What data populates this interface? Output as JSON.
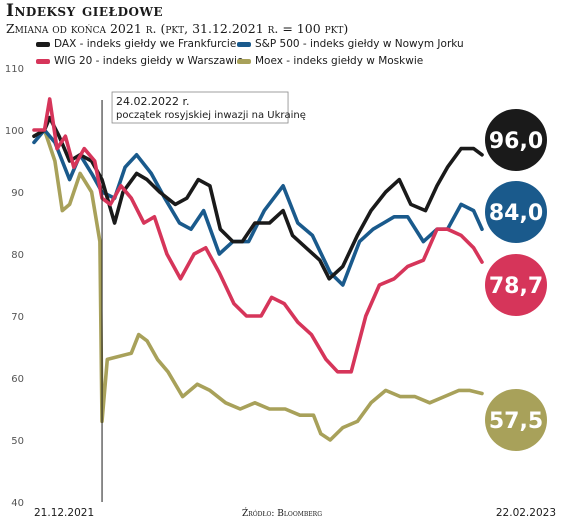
{
  "title": "Indeksy giełdowe",
  "subtitle": "Zmiana od końca 2021 r. (pkt, 31.12.2021 r. = 100 pkt)",
  "source": "Źródło: Bloomberg",
  "chart_data": {
    "type": "line",
    "title": "Indeksy giełdowe",
    "subtitle": "Zmiana od końca 2021 r. (pkt, 31.12.2021 r. = 100 pkt)",
    "xlabel": "",
    "ylabel": "",
    "ylim": [
      40,
      110
    ],
    "yticks": [
      40,
      50,
      60,
      70,
      80,
      90,
      100,
      110
    ],
    "x_start_label": "21.12.2021",
    "x_end_label": "22.02.2023",
    "x_start": "2021-12-21",
    "x_end": "2023-02-22",
    "grid": false,
    "legend_position": "top",
    "annotation": {
      "date": "2022-02-24",
      "line1": "24.02.2022 r.",
      "line2": "początek rosyjskiej inwazji na Ukrainę"
    },
    "series": [
      {
        "name": "DAX - indeks giełdy we Frankfurcie",
        "color": "#1a1a1a",
        "end_label": "96,0",
        "end_value": 96.0,
        "points": [
          [
            "2021-12-21",
            99
          ],
          [
            "2021-12-31",
            100
          ],
          [
            "2022-01-05",
            102
          ],
          [
            "2022-01-14",
            99
          ],
          [
            "2022-01-24",
            95
          ],
          [
            "2022-02-03",
            96
          ],
          [
            "2022-02-14",
            95
          ],
          [
            "2022-02-24",
            92
          ],
          [
            "2022-03-08",
            85
          ],
          [
            "2022-03-16",
            90
          ],
          [
            "2022-03-29",
            93
          ],
          [
            "2022-04-08",
            92
          ],
          [
            "2022-04-20",
            90
          ],
          [
            "2022-05-05",
            88
          ],
          [
            "2022-05-16",
            89
          ],
          [
            "2022-05-27",
            92
          ],
          [
            "2022-06-07",
            91
          ],
          [
            "2022-06-17",
            84
          ],
          [
            "2022-06-29",
            82
          ],
          [
            "2022-07-08",
            82
          ],
          [
            "2022-07-20",
            85
          ],
          [
            "2022-08-03",
            85
          ],
          [
            "2022-08-16",
            87
          ],
          [
            "2022-08-25",
            83
          ],
          [
            "2022-09-07",
            81
          ],
          [
            "2022-09-20",
            79
          ],
          [
            "2022-09-29",
            76
          ],
          [
            "2022-10-12",
            78
          ],
          [
            "2022-10-26",
            83
          ],
          [
            "2022-11-08",
            87
          ],
          [
            "2022-11-22",
            90
          ],
          [
            "2022-12-05",
            92
          ],
          [
            "2022-12-16",
            88
          ],
          [
            "2022-12-30",
            87
          ],
          [
            "2023-01-10",
            91
          ],
          [
            "2023-01-20",
            94
          ],
          [
            "2023-02-02",
            97
          ],
          [
            "2023-02-14",
            97
          ],
          [
            "2023-02-22",
            96
          ]
        ]
      },
      {
        "name": "S&P 500 - indeks giełdy w Nowym Jorku",
        "color": "#1a5a8c",
        "end_label": "84,0",
        "end_value": 84.0,
        "points": [
          [
            "2021-12-21",
            98
          ],
          [
            "2021-12-31",
            100
          ],
          [
            "2022-01-10",
            98
          ],
          [
            "2022-01-24",
            92
          ],
          [
            "2022-02-03",
            96
          ],
          [
            "2022-02-14",
            93
          ],
          [
            "2022-02-24",
            90
          ],
          [
            "2022-03-08",
            89
          ],
          [
            "2022-03-18",
            94
          ],
          [
            "2022-03-29",
            96
          ],
          [
            "2022-04-12",
            93
          ],
          [
            "2022-04-25",
            89
          ],
          [
            "2022-05-09",
            85
          ],
          [
            "2022-05-20",
            84
          ],
          [
            "2022-06-01",
            87
          ],
          [
            "2022-06-16",
            80
          ],
          [
            "2022-06-29",
            82
          ],
          [
            "2022-07-14",
            82
          ],
          [
            "2022-07-29",
            87
          ],
          [
            "2022-08-16",
            91
          ],
          [
            "2022-08-30",
            85
          ],
          [
            "2022-09-13",
            83
          ],
          [
            "2022-09-30",
            77
          ],
          [
            "2022-10-12",
            75
          ],
          [
            "2022-10-28",
            82
          ],
          [
            "2022-11-10",
            84
          ],
          [
            "2022-11-30",
            86
          ],
          [
            "2022-12-13",
            86
          ],
          [
            "2022-12-28",
            82
          ],
          [
            "2023-01-10",
            84
          ],
          [
            "2023-01-20",
            84
          ],
          [
            "2023-02-02",
            88
          ],
          [
            "2023-02-14",
            87
          ],
          [
            "2023-02-22",
            84
          ]
        ]
      },
      {
        "name": "WIG 20 - indeks giełdy w Warszawie",
        "color": "#d6355a",
        "end_label": "78,7",
        "end_value": 78.7,
        "points": [
          [
            "2021-12-21",
            100
          ],
          [
            "2021-12-31",
            100
          ],
          [
            "2022-01-05",
            105
          ],
          [
            "2022-01-12",
            97
          ],
          [
            "2022-01-20",
            99
          ],
          [
            "2022-01-28",
            94
          ],
          [
            "2022-02-07",
            97
          ],
          [
            "2022-02-17",
            95
          ],
          [
            "2022-02-24",
            89
          ],
          [
            "2022-03-04",
            88
          ],
          [
            "2022-03-14",
            91
          ],
          [
            "2022-03-24",
            89
          ],
          [
            "2022-04-05",
            85
          ],
          [
            "2022-04-15",
            86
          ],
          [
            "2022-04-27",
            80
          ],
          [
            "2022-05-10",
            76
          ],
          [
            "2022-05-23",
            80
          ],
          [
            "2022-06-03",
            81
          ],
          [
            "2022-06-16",
            77
          ],
          [
            "2022-06-30",
            72
          ],
          [
            "2022-07-12",
            70
          ],
          [
            "2022-07-26",
            70
          ],
          [
            "2022-08-05",
            73
          ],
          [
            "2022-08-17",
            72
          ],
          [
            "2022-08-30",
            69
          ],
          [
            "2022-09-12",
            67
          ],
          [
            "2022-09-26",
            63
          ],
          [
            "2022-10-07",
            61
          ],
          [
            "2022-10-20",
            61
          ],
          [
            "2022-11-03",
            70
          ],
          [
            "2022-11-16",
            75
          ],
          [
            "2022-11-30",
            76
          ],
          [
            "2022-12-13",
            78
          ],
          [
            "2022-12-28",
            79
          ],
          [
            "2023-01-10",
            84
          ],
          [
            "2023-01-20",
            84
          ],
          [
            "2023-02-02",
            83
          ],
          [
            "2023-02-14",
            81
          ],
          [
            "2023-02-22",
            78.7
          ]
        ]
      },
      {
        "name": "Moex - indeks giełdy w Moskwie",
        "color": "#a8a15a",
        "end_label": "57,5",
        "end_value": 57.5,
        "points": [
          [
            "2021-12-21",
            99
          ],
          [
            "2021-12-31",
            100
          ],
          [
            "2022-01-10",
            95
          ],
          [
            "2022-01-17",
            87
          ],
          [
            "2022-01-24",
            88
          ],
          [
            "2022-02-03",
            93
          ],
          [
            "2022-02-14",
            90
          ],
          [
            "2022-02-22",
            82
          ],
          [
            "2022-02-24",
            53
          ],
          [
            "2022-03-01",
            63
          ],
          [
            "2022-03-24",
            64
          ],
          [
            "2022-03-31",
            67
          ],
          [
            "2022-04-08",
            66
          ],
          [
            "2022-04-18",
            63
          ],
          [
            "2022-04-28",
            61
          ],
          [
            "2022-05-12",
            57
          ],
          [
            "2022-05-26",
            59
          ],
          [
            "2022-06-07",
            58
          ],
          [
            "2022-06-22",
            56
          ],
          [
            "2022-07-06",
            55
          ],
          [
            "2022-07-20",
            56
          ],
          [
            "2022-08-03",
            55
          ],
          [
            "2022-08-18",
            55
          ],
          [
            "2022-09-01",
            54
          ],
          [
            "2022-09-14",
            54
          ],
          [
            "2022-09-21",
            51
          ],
          [
            "2022-09-30",
            50
          ],
          [
            "2022-10-12",
            52
          ],
          [
            "2022-10-26",
            53
          ],
          [
            "2022-11-08",
            56
          ],
          [
            "2022-11-22",
            58
          ],
          [
            "2022-12-06",
            57
          ],
          [
            "2022-12-20",
            57
          ],
          [
            "2023-01-03",
            56
          ],
          [
            "2023-01-17",
            57
          ],
          [
            "2023-01-31",
            58
          ],
          [
            "2023-02-10",
            58
          ],
          [
            "2023-02-22",
            57.5
          ]
        ]
      }
    ]
  }
}
